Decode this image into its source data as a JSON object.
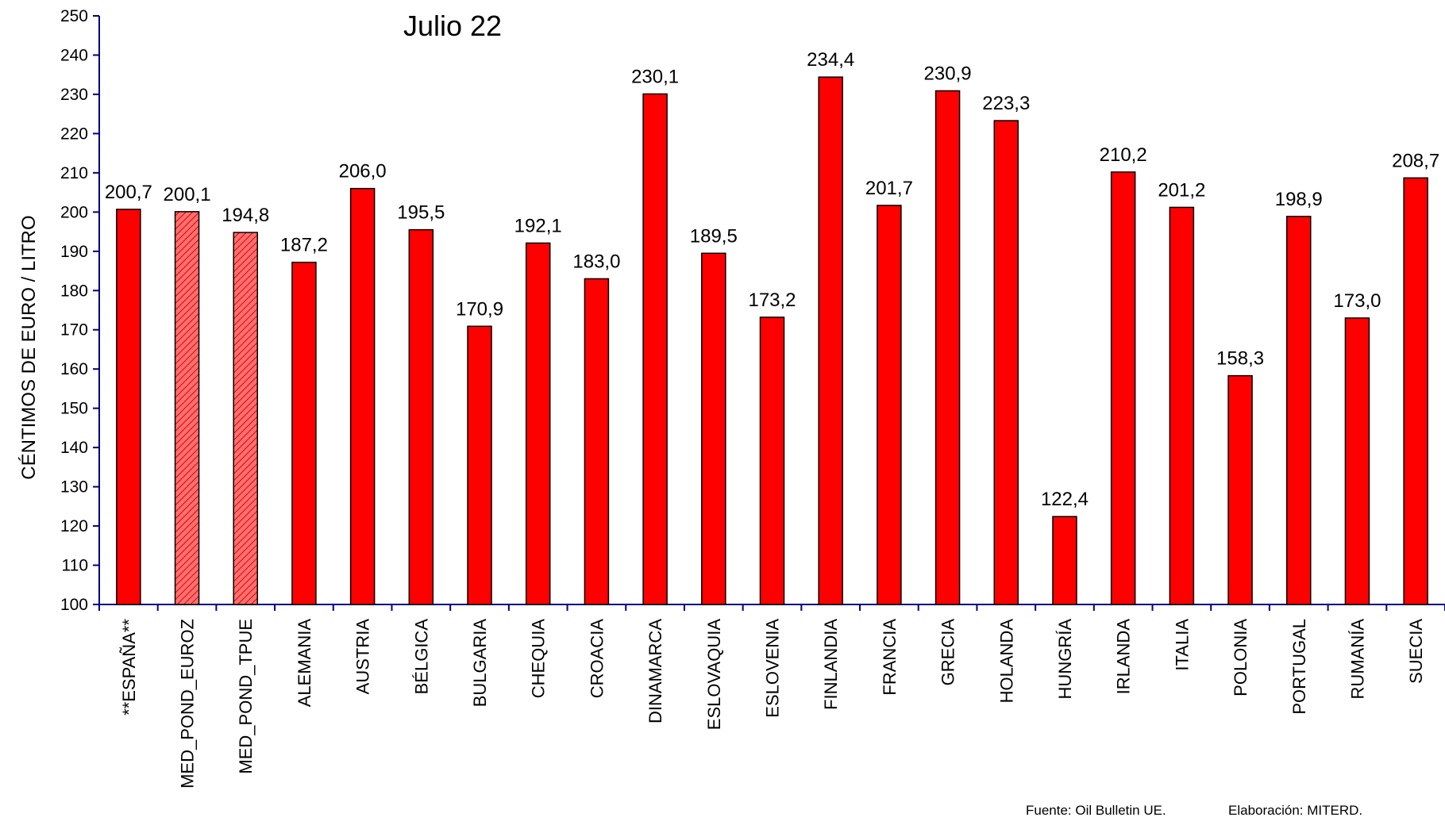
{
  "chart_data": {
    "type": "bar",
    "title": "Julio 22",
    "ylabel": "CÉNTIMOS DE EURO / LITRO",
    "xlabel": "",
    "ylim": [
      100,
      250
    ],
    "yticks": [
      100,
      110,
      120,
      130,
      140,
      150,
      160,
      170,
      180,
      190,
      200,
      210,
      220,
      230,
      240,
      250
    ],
    "grid": false,
    "categories": [
      "**ESPAÑA**",
      "MED_POND_EUROZ",
      "MED_POND_TPUE",
      "ALEMANIA",
      "AUSTRIA",
      "BÉLGICA",
      "BULGARIA",
      "CHEQUIA",
      "CROACIA",
      "DINAMARCA",
      "ESLOVAQUIA",
      "ESLOVENIA",
      "FINLANDIA",
      "FRANCIA",
      "GRECIA",
      "HOLANDA",
      "HUNGRÍA",
      "IRLANDA",
      "ITALIA",
      "POLONIA",
      "PORTUGAL",
      "RUMANÍA",
      "SUECIA"
    ],
    "values": [
      200.7,
      200.1,
      194.8,
      187.2,
      206.0,
      195.5,
      170.9,
      192.1,
      183.0,
      230.1,
      189.5,
      173.2,
      234.4,
      201.7,
      230.9,
      223.3,
      122.4,
      210.2,
      201.2,
      158.3,
      198.9,
      173.0,
      208.7
    ],
    "value_labels": [
      "200,7",
      "200,1",
      "194,8",
      "187,2",
      "206,0",
      "195,5",
      "170,9",
      "192,1",
      "183,0",
      "230,1",
      "189,5",
      "173,2",
      "234,4",
      "201,7",
      "230,9",
      "223,3",
      "122,4",
      "210,2",
      "201,2",
      "158,3",
      "198,9",
      "173,0",
      "208,7"
    ],
    "bar_style": [
      "solid",
      "hatched",
      "hatched",
      "solid",
      "solid",
      "solid",
      "solid",
      "solid",
      "solid",
      "solid",
      "solid",
      "solid",
      "solid",
      "solid",
      "solid",
      "solid",
      "solid",
      "solid",
      "solid",
      "solid",
      "solid",
      "solid",
      "solid"
    ],
    "colors": {
      "bar": "#ff0000",
      "hatched_bar": "#ff6666",
      "bar_border": "#000000",
      "axis": "#000080"
    }
  },
  "footer": {
    "source": "Fuente: Oil Bulletin UE.",
    "credit": "Elaboración: MITERD."
  }
}
